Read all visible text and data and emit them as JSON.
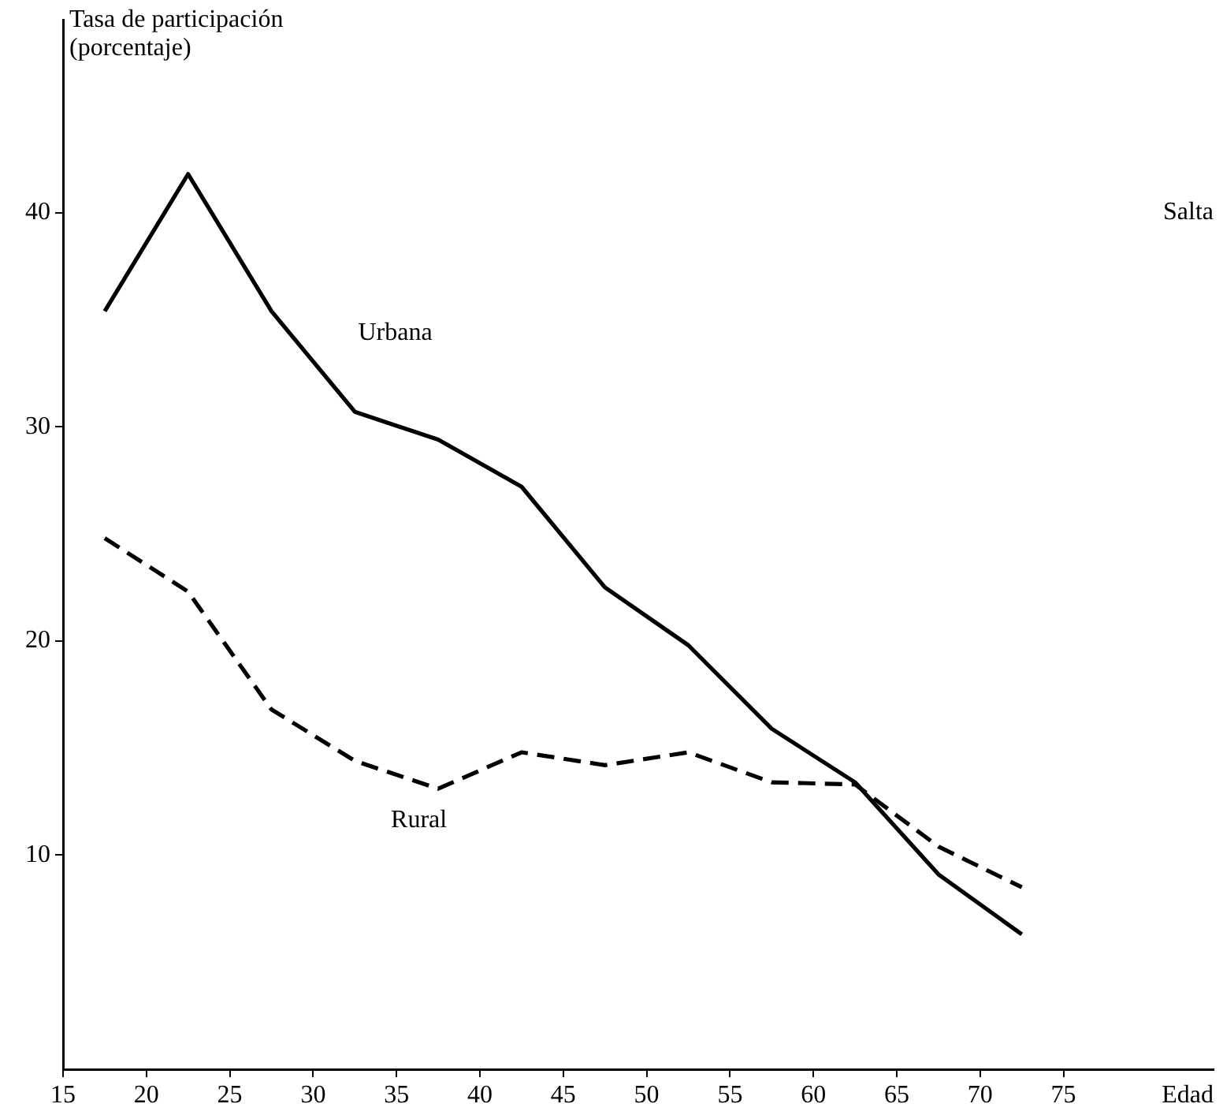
{
  "chart_data": {
    "type": "line",
    "title": "Salta",
    "xlabel": "Edad",
    "ylabel": "Tasa de participación\n(porcentaje)",
    "x": [
      17.5,
      22.5,
      27.5,
      32.5,
      37.5,
      42.5,
      47.5,
      52.5,
      57.5,
      62.5,
      67.5,
      72.5
    ],
    "series": [
      {
        "name": "Urbana",
        "color": "#000000",
        "line_style": "solid",
        "values": [
          35.4,
          41.8,
          35.4,
          30.7,
          29.4,
          27.2,
          22.5,
          19.8,
          15.9,
          13.4,
          9.1,
          6.3
        ]
      },
      {
        "name": "Rural",
        "color": "#000000",
        "line_style": "dashed",
        "values": [
          24.8,
          22.3,
          16.8,
          14.4,
          13.1,
          14.8,
          14.2,
          14.8,
          13.4,
          13.3,
          10.4,
          8.5
        ]
      }
    ],
    "xlim": [
      15,
      84
    ],
    "ylim": [
      0,
      49
    ],
    "xticks": [
      15,
      20,
      25,
      30,
      35,
      40,
      45,
      50,
      55,
      60,
      65,
      70,
      75
    ],
    "yticks": [
      10,
      20,
      30,
      40
    ],
    "grid": false,
    "legend": false,
    "marker": "none"
  }
}
